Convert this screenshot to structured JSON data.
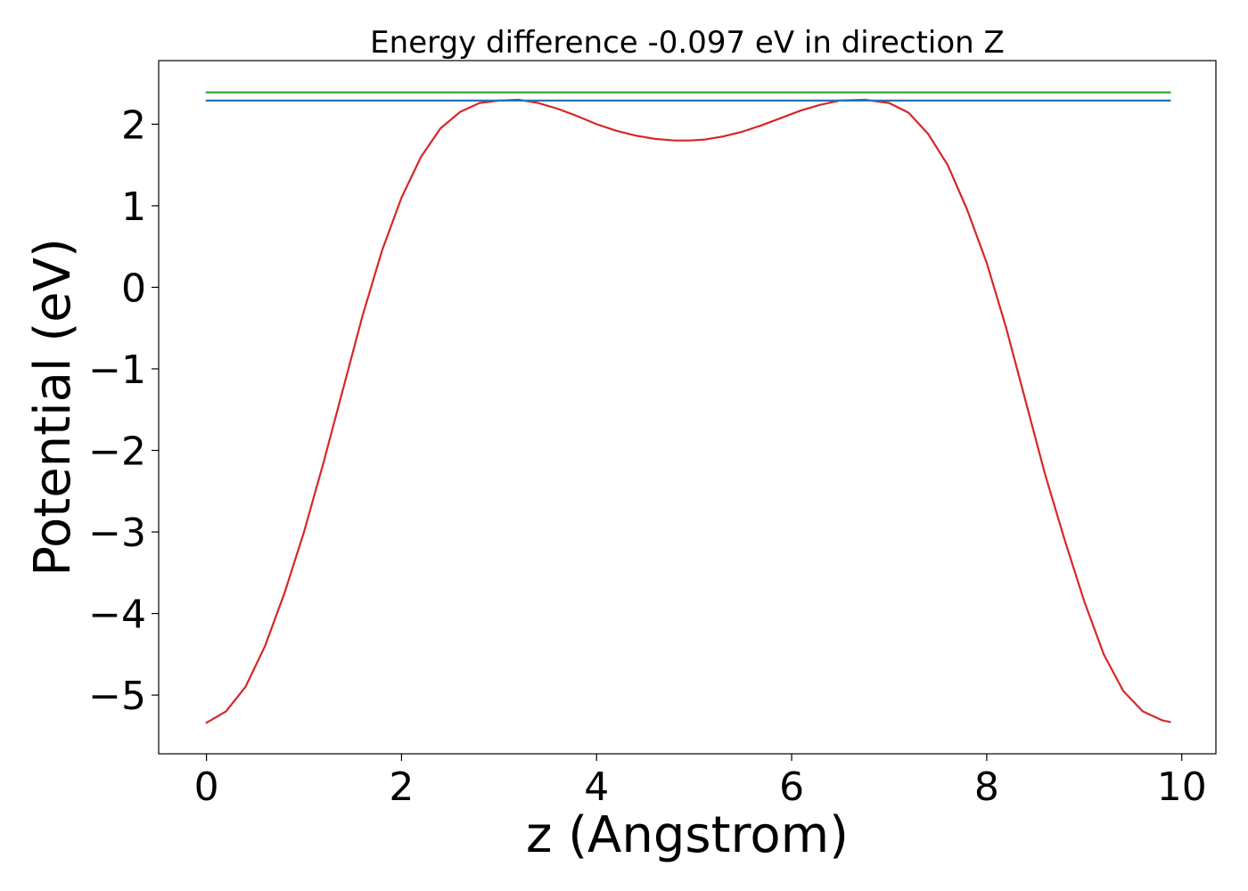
{
  "chart_data": {
    "type": "line",
    "title": "Energy difference -0.097 eV in direction Z",
    "xlabel": "z (Angstrom)",
    "ylabel": "Potential (eV)",
    "xlim": [
      -0.49,
      10.35
    ],
    "ylim": [
      -5.72,
      2.78
    ],
    "xticks": [
      0,
      2,
      4,
      6,
      8,
      10
    ],
    "xtick_labels": [
      "0",
      "2",
      "4",
      "6",
      "8",
      "10"
    ],
    "yticks": [
      2,
      1,
      0,
      -1,
      -2,
      -3,
      -4,
      -5
    ],
    "ytick_labels": [
      "2",
      "1",
      "0",
      "−1",
      "−2",
      "−3",
      "−4",
      "−5"
    ],
    "grid": false,
    "legend": "none",
    "series": [
      {
        "color": "#d62728",
        "x": [
          0.0,
          0.2,
          0.4,
          0.6,
          0.8,
          1.0,
          1.2,
          1.4,
          1.6,
          1.8,
          2.0,
          2.2,
          2.4,
          2.6,
          2.8,
          3.0,
          3.2,
          3.4,
          3.6,
          3.8,
          4.0,
          4.2,
          4.4,
          4.6,
          4.8,
          4.95,
          5.1,
          5.3,
          5.5,
          5.7,
          5.9,
          6.1,
          6.3,
          6.5,
          6.75,
          7.0,
          7.2,
          7.4,
          7.6,
          7.8,
          8.0,
          8.2,
          8.4,
          8.6,
          8.8,
          9.0,
          9.2,
          9.4,
          9.6,
          9.8,
          9.88
        ],
        "y": [
          -5.34,
          -5.2,
          -4.9,
          -4.4,
          -3.75,
          -3.0,
          -2.15,
          -1.25,
          -0.35,
          0.45,
          1.1,
          1.6,
          1.95,
          2.15,
          2.26,
          2.29,
          2.3,
          2.26,
          2.19,
          2.1,
          2.0,
          1.92,
          1.86,
          1.82,
          1.8,
          1.8,
          1.81,
          1.85,
          1.91,
          1.99,
          2.08,
          2.17,
          2.24,
          2.29,
          2.3,
          2.26,
          2.14,
          1.88,
          1.5,
          0.95,
          0.3,
          -0.5,
          -1.4,
          -2.3,
          -3.1,
          -3.85,
          -4.5,
          -4.95,
          -5.2,
          -5.31,
          -5.33
        ]
      },
      {
        "color": "#1f77b4",
        "x": [
          0.0,
          9.88
        ],
        "y": [
          2.29,
          2.29
        ]
      },
      {
        "color": "#2ca02c",
        "x": [
          0.0,
          9.88
        ],
        "y": [
          2.39,
          2.39
        ]
      }
    ]
  }
}
